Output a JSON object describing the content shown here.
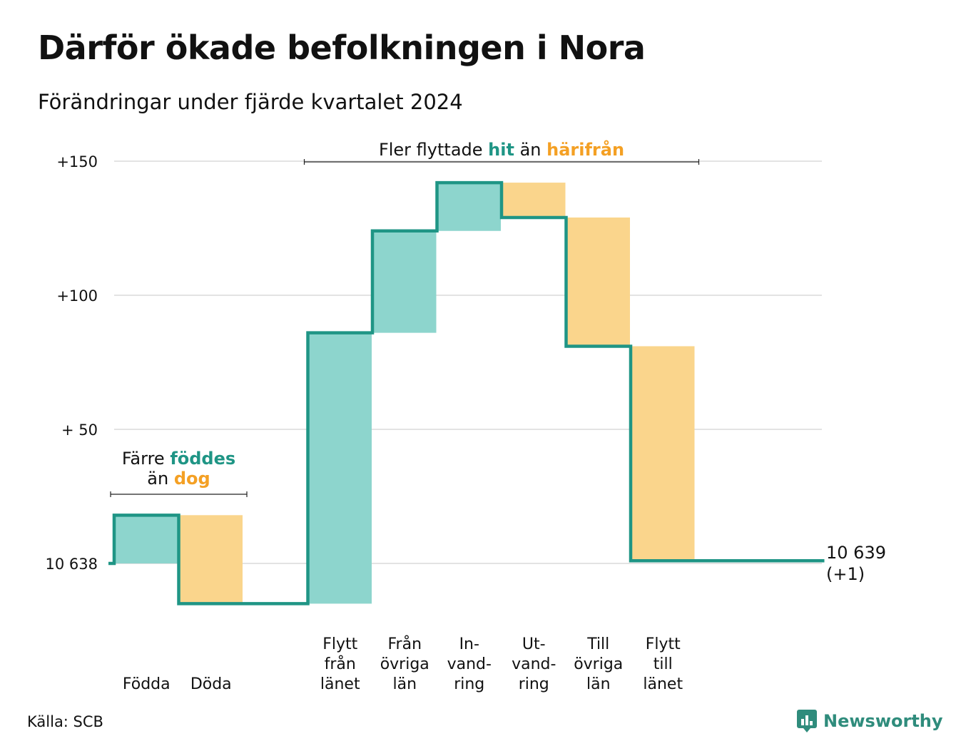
{
  "title": "Därför ökade befolkningen i Nora",
  "subtitle": "Förändringar under fjärde kvartalet 2024",
  "source": "Källa: SCB",
  "brand": "Newsworthy",
  "colors": {
    "increase_fill": "#8dd5cd",
    "decrease_fill": "#fad58c",
    "line": "#1f9585",
    "hit_text": "#1f9585",
    "bort_text": "#f4a024",
    "grid": "#e3e3e3"
  },
  "chart_data": {
    "type": "waterfall",
    "base_value": 10638,
    "y_tick_labels": [
      "10 638",
      "+ 50",
      "+100",
      "+150"
    ],
    "y_tick_values": [
      0,
      50,
      100,
      150
    ],
    "ylim": [
      -18,
      160
    ],
    "steps": [
      {
        "label": [
          "Födda"
        ],
        "change": 18,
        "direction": "increase"
      },
      {
        "label": [
          "Döda"
        ],
        "change": -33,
        "direction": "decrease"
      },
      {
        "label": [],
        "change": 0,
        "direction": "none"
      },
      {
        "label": [
          "Flytt",
          "från",
          "länet"
        ],
        "change": 101,
        "direction": "increase"
      },
      {
        "label": [
          "Från",
          "övriga",
          "län"
        ],
        "change": 38,
        "direction": "increase"
      },
      {
        "label": [
          "In-",
          "vand-",
          "ring"
        ],
        "change": 18,
        "direction": "increase"
      },
      {
        "label": [
          "Ut-",
          "vand-",
          "ring"
        ],
        "change": -13,
        "direction": "decrease"
      },
      {
        "label": [
          "Till",
          "övriga",
          "län"
        ],
        "change": -48,
        "direction": "decrease"
      },
      {
        "label": [
          "Flytt",
          "till",
          "länet"
        ],
        "change": -80,
        "direction": "decrease"
      },
      {
        "label": [],
        "change": 0,
        "direction": "none"
      },
      {
        "label": [],
        "change": 0,
        "direction": "none"
      }
    ],
    "end_label": [
      "10 639",
      "(+1)"
    ],
    "annotations": [
      {
        "id": "natural",
        "parts": [
          [
            {
              "text": "Färre ",
              "style": "plain"
            },
            {
              "text": "föddes",
              "style": "hit"
            }
          ],
          [
            {
              "text": "än ",
              "style": "plain"
            },
            {
              "text": "dog",
              "style": "bort"
            }
          ]
        ],
        "span": [
          0,
          1
        ]
      },
      {
        "id": "migration",
        "parts": [
          [
            {
              "text": "Fler flyttade ",
              "style": "plain"
            },
            {
              "text": "hit",
              "style": "hit"
            },
            {
              "text": " än ",
              "style": "plain"
            },
            {
              "text": "härifrån",
              "style": "bort"
            }
          ]
        ],
        "span": [
          3,
          8
        ]
      }
    ]
  }
}
